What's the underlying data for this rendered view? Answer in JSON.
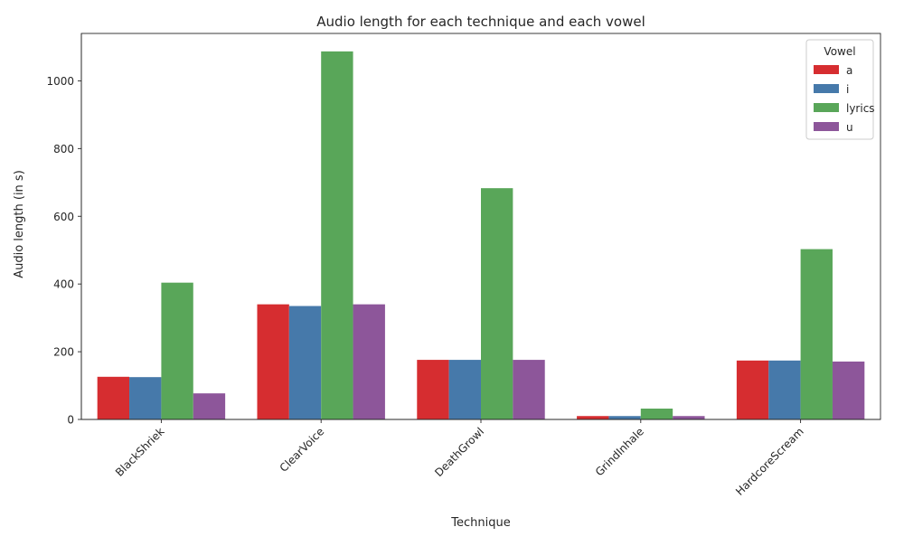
{
  "chart_data": {
    "type": "bar",
    "title": "Audio length for each technique and each vowel",
    "xlabel": "Technique",
    "ylabel": "Audio length (in s)",
    "categories": [
      "BlackShriek",
      "ClearVoice",
      "DeathGrowl",
      "GrindInhale",
      "HardcoreScream"
    ],
    "series": [
      {
        "name": "a",
        "color": "#d62d30",
        "values": [
          126,
          340,
          176,
          10,
          174
        ]
      },
      {
        "name": "i",
        "color": "#4679aa",
        "values": [
          125,
          335,
          176,
          10,
          174
        ]
      },
      {
        "name": "lyrics",
        "color": "#59a659",
        "values": [
          404,
          1087,
          683,
          32,
          503
        ]
      },
      {
        "name": "u",
        "color": "#8d569a",
        "values": [
          77,
          340,
          176,
          10,
          171
        ]
      }
    ],
    "ylim": [
      0,
      1140
    ],
    "yticks": [
      0,
      200,
      400,
      600,
      800,
      1000
    ],
    "legend": {
      "title": "Vowel",
      "position": "top-right"
    },
    "grid": false
  }
}
